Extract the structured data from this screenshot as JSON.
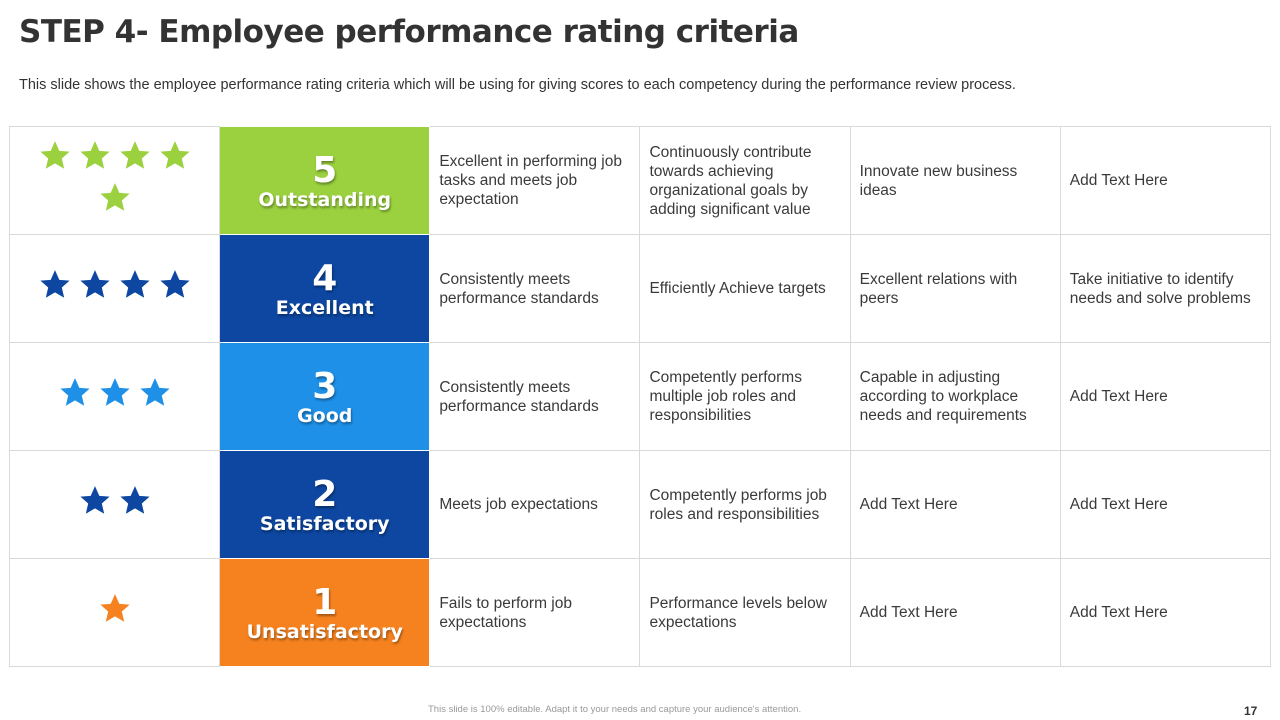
{
  "title": "STEP 4- Employee performance rating criteria",
  "subtitle": "This slide shows the employee performance rating criteria which will be using for giving scores to each competency during the performance review process.",
  "rows": [
    {
      "stars": 5,
      "color": "#9bd03f",
      "star_color": "#9bd03f",
      "number": "5",
      "label": "Outstanding",
      "cells": [
        "Excellent in performing job tasks and meets job expectation",
        "Continuously contribute towards achieving organizational goals by adding significant value",
        "Innovate  new business ideas",
        "Add Text Here"
      ]
    },
    {
      "stars": 4,
      "color": "#0d47a1",
      "star_color": "#0d47a1",
      "number": "4",
      "label": "Excellent",
      "cells": [
        "Consistently meets performance standards",
        "Efficiently Achieve targets",
        "Excellent relations with peers",
        "Take initiative to identify needs and solve problems"
      ]
    },
    {
      "stars": 3,
      "color": "#1e90e8",
      "star_color": "#1e90e8",
      "number": "3",
      "label": "Good",
      "cells": [
        "Consistently meets performance standards",
        "Competently performs multiple job roles and responsibilities",
        "Capable in adjusting according to workplace needs and requirements",
        "Add Text Here"
      ]
    },
    {
      "stars": 2,
      "color": "#0d47a1",
      "star_color": "#0d47a1",
      "number": "2",
      "label": "Satisfactory",
      "cells": [
        "Meets job expectations",
        "Competently performs job roles and responsibilities",
        "Add Text Here",
        "Add Text Here"
      ]
    },
    {
      "stars": 1,
      "color": "#f5821f",
      "star_color": "#f5821f",
      "number": "1",
      "label": "Unsatisfactory",
      "cells": [
        "Fails to perform job expectations",
        "Performance levels below expectations",
        "Add Text Here",
        "Add Text Here"
      ]
    }
  ],
  "footer": "This slide is 100% editable. Adapt it to your needs and capture your audience's attention.",
  "page_number": "17"
}
